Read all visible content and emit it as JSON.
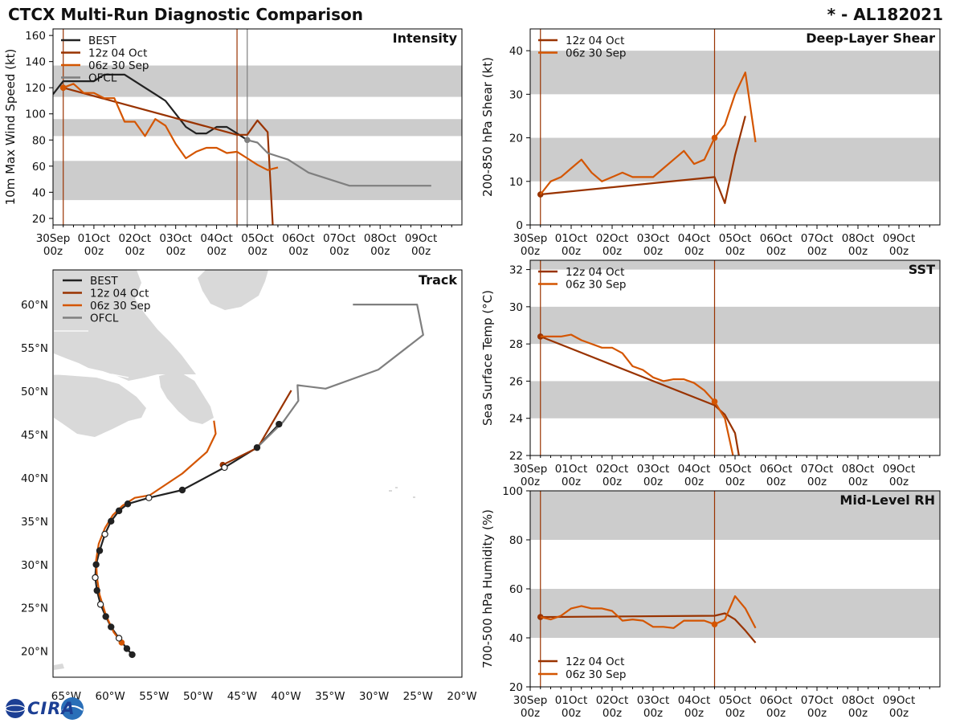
{
  "header": {
    "title": "CTCX Multi-Run Diagnostic Comparison",
    "storm_id": "* - AL182021"
  },
  "logo": {
    "text": "CIRA"
  },
  "colors": {
    "best": "#222222",
    "run12z": "#993300",
    "run06z": "#d45500",
    "ofcl": "#7f7f7f",
    "band": "#cccccc",
    "land": "#d9d9d9"
  },
  "time_axis": {
    "days": [
      "30Sep",
      "01Oct",
      "02Oct",
      "03Oct",
      "04Oct",
      "05Oct",
      "06Oct",
      "07Oct",
      "08Oct",
      "09Oct"
    ],
    "hour": "00z",
    "start": "2021-09-30 00z",
    "units": "hours since 30Sep 00z",
    "xlim": [
      0,
      240
    ]
  },
  "chart_data": [
    {
      "id": "intensity",
      "type": "line",
      "title": "Intensity",
      "ylabel": "10m Max Wind Speed (kt)",
      "ylim": [
        15,
        165
      ],
      "yticks": [
        20,
        40,
        60,
        80,
        100,
        120,
        140,
        160
      ],
      "bands": [
        [
          34,
          64
        ],
        [
          83,
          96
        ],
        [
          113,
          137
        ]
      ],
      "init_lines": [
        {
          "x": 6,
          "series": "06z 30 Sep"
        },
        {
          "x": 108,
          "series": "12z 04 Oct"
        },
        {
          "x": 114,
          "series": "OFCL"
        }
      ],
      "legend": [
        "BEST",
        "12z 04 Oct",
        "06z 30 Sep",
        "OFCL"
      ],
      "series": [
        {
          "name": "BEST",
          "x": [
            0,
            6,
            12,
            18,
            24,
            30,
            36,
            42,
            48,
            54,
            60,
            66,
            72,
            78,
            84,
            90,
            96,
            102,
            108,
            114
          ],
          "y": [
            115,
            125,
            125,
            125,
            125,
            130,
            130,
            130,
            125,
            120,
            115,
            110,
            100,
            90,
            85,
            85,
            90,
            90,
            85,
            80
          ]
        },
        {
          "name": "12z 04 Oct",
          "x": [
            6,
            108,
            114,
            120,
            126,
            129
          ],
          "y": [
            120,
            84,
            84,
            95,
            86,
            14
          ],
          "marker_x": 6
        },
        {
          "name": "06z 30 Sep",
          "x": [
            6,
            12,
            18,
            24,
            30,
            36,
            42,
            48,
            54,
            60,
            66,
            72,
            78,
            84,
            90,
            96,
            102,
            108,
            114,
            120,
            126,
            132
          ],
          "y": [
            120,
            123,
            116,
            116,
            112,
            112,
            94,
            94,
            83,
            96,
            91,
            77,
            66,
            71,
            74,
            74,
            70,
            71,
            66,
            61,
            57,
            59
          ],
          "marker_x": 6
        },
        {
          "name": "OFCL",
          "x": [
            114,
            120,
            126,
            138,
            150,
            174,
            198,
            222
          ],
          "y": [
            80,
            78,
            70,
            65,
            55,
            45,
            45,
            45
          ],
          "marker_x": 114
        }
      ]
    },
    {
      "id": "shear",
      "type": "line",
      "title": "Deep-Layer Shear",
      "ylabel": "200-850 hPa Shear (kt)",
      "ylim": [
        0,
        45
      ],
      "yticks": [
        0,
        10,
        20,
        30,
        40
      ],
      "bands": [
        [
          10,
          20
        ],
        [
          30,
          40
        ]
      ],
      "init_lines": [
        {
          "x": 6
        },
        {
          "x": 108
        }
      ],
      "legend": [
        "12z 04 Oct",
        "06z 30 Sep"
      ],
      "series": [
        {
          "name": "12z 04 Oct",
          "x": [
            6,
            108,
            114,
            120,
            126
          ],
          "y": [
            7,
            11,
            5,
            16,
            25
          ],
          "marker_x": 6
        },
        {
          "name": "06z 30 Sep",
          "x": [
            6,
            12,
            18,
            24,
            30,
            36,
            42,
            48,
            54,
            60,
            66,
            72,
            78,
            84,
            90,
            96,
            102,
            108,
            114,
            120,
            126,
            132
          ],
          "y": [
            7,
            10,
            11,
            13,
            15,
            12,
            10,
            11,
            12,
            11,
            11,
            11,
            13,
            15,
            17,
            14,
            15,
            20,
            23,
            30,
            35,
            19
          ],
          "marker_x": 108
        }
      ]
    },
    {
      "id": "sst",
      "type": "line",
      "title": "SST",
      "ylabel": "Sea Surface Temp (°C)",
      "ylim": [
        22,
        32.5
      ],
      "yticks": [
        22,
        24,
        26,
        28,
        30,
        32
      ],
      "bands": [
        [
          24,
          26
        ],
        [
          28,
          30
        ],
        [
          32,
          33
        ]
      ],
      "init_lines": [
        {
          "x": 6
        },
        {
          "x": 108
        }
      ],
      "legend": [
        "12z 04 Oct",
        "06z 30 Sep"
      ],
      "series": [
        {
          "name": "12z 04 Oct",
          "x": [
            6,
            108,
            114,
            120,
            126
          ],
          "y": [
            28.4,
            24.7,
            24.2,
            23.2,
            20.0
          ],
          "marker_x": 6
        },
        {
          "name": "06z 30 Sep",
          "x": [
            6,
            12,
            18,
            24,
            30,
            36,
            42,
            48,
            54,
            60,
            66,
            72,
            78,
            84,
            90,
            96,
            102,
            108,
            114,
            120
          ],
          "y": [
            28.4,
            28.4,
            28.4,
            28.5,
            28.2,
            28.0,
            27.8,
            27.8,
            27.5,
            26.8,
            26.6,
            26.2,
            26.0,
            26.1,
            26.1,
            25.9,
            25.5,
            24.9,
            24.0,
            21.5
          ],
          "marker_x": 108
        }
      ]
    },
    {
      "id": "rh",
      "type": "line",
      "title": "Mid-Level RH",
      "ylabel": "700-500 hPa Humidity (%)",
      "ylim": [
        20,
        100
      ],
      "yticks": [
        20,
        40,
        60,
        80,
        100
      ],
      "bands": [
        [
          40,
          60
        ],
        [
          80,
          100
        ]
      ],
      "init_lines": [
        {
          "x": 6
        },
        {
          "x": 108
        }
      ],
      "legend": [
        "12z 04 Oct",
        "06z 30 Sep"
      ],
      "series": [
        {
          "name": "12z 04 Oct",
          "x": [
            6,
            108,
            114,
            120,
            126,
            132
          ],
          "y": [
            48.5,
            49,
            50,
            47.5,
            43,
            38
          ],
          "marker_x": 6
        },
        {
          "name": "06z 30 Sep",
          "x": [
            6,
            12,
            18,
            24,
            30,
            36,
            42,
            48,
            54,
            60,
            66,
            72,
            78,
            84,
            90,
            96,
            102,
            108,
            114,
            120,
            126,
            132
          ],
          "y": [
            48.5,
            47.5,
            49,
            52,
            53,
            52,
            52,
            51,
            47,
            47.5,
            47,
            44.5,
            44.5,
            44,
            47,
            47,
            47,
            45.5,
            47.5,
            57,
            52,
            44
          ],
          "marker_x": 108
        }
      ]
    },
    {
      "id": "track",
      "type": "scatter",
      "title": "Track",
      "xlim_deg": [
        -66.5,
        -20
      ],
      "ylim_deg": [
        17,
        64
      ],
      "xticks": [
        -65,
        -60,
        -55,
        -50,
        -45,
        -40,
        -35,
        -30,
        -25,
        -20
      ],
      "xtick_labels": [
        "65°W",
        "60°W",
        "55°W",
        "50°W",
        "45°W",
        "40°W",
        "35°W",
        "30°W",
        "25°W",
        "20°W"
      ],
      "yticks": [
        20,
        25,
        30,
        35,
        40,
        45,
        50,
        55,
        60
      ],
      "ytick_labels": [
        "20°N",
        "25°N",
        "30°N",
        "35°N",
        "40°N",
        "45°N",
        "50°N",
        "55°N",
        "60°N"
      ],
      "legend": [
        "BEST",
        "12z 04 Oct",
        "06z 30 Sep",
        "OFCL"
      ],
      "series": [
        {
          "name": "BEST",
          "lon": [
            -57.5,
            -58.1,
            -59.0,
            -59.9,
            -60.5,
            -61.1,
            -61.5,
            -61.7,
            -61.6,
            -61.2,
            -60.6,
            -59.9,
            -59.0,
            -58.0,
            -55.6,
            -51.8,
            -47.0,
            -43.3,
            -40.8
          ],
          "lat": [
            19.6,
            20.3,
            21.5,
            22.8,
            24.0,
            25.4,
            27.0,
            28.5,
            30.0,
            31.6,
            33.5,
            35.0,
            36.2,
            37.0,
            37.7,
            38.6,
            41.2,
            43.5,
            46.2
          ],
          "open": [
            false,
            false,
            true,
            false,
            false,
            true,
            false,
            true,
            false,
            false,
            true,
            false,
            false,
            false,
            true,
            false,
            true,
            false,
            false
          ]
        },
        {
          "name": "12z 04 Oct",
          "lon": [
            -47.2,
            -43.2,
            -39.4
          ],
          "lat": [
            41.5,
            43.5,
            50.1
          ]
        },
        {
          "name": "06z 30 Sep",
          "lon": [
            -58.7,
            -59.6,
            -60.5,
            -61.2,
            -61.5,
            -61.6,
            -61.3,
            -60.6,
            -59.7,
            -58.6,
            -57.2,
            -55.5,
            -51.8,
            -49.0,
            -48.0,
            -48.2
          ],
          "lat": [
            21.0,
            22.2,
            24.2,
            26.5,
            28.5,
            30.5,
            32.4,
            34.2,
            35.7,
            36.8,
            37.7,
            38.0,
            40.5,
            43.0,
            45.1,
            46.6
          ]
        },
        {
          "name": "OFCL",
          "lon": [
            -43.3,
            -40.3,
            -38.6,
            -38.7,
            -35.5,
            -29.5,
            -24.4,
            -25.1,
            -32.4
          ],
          "lat": [
            43.5,
            46.5,
            48.9,
            50.7,
            50.3,
            52.5,
            56.5,
            60.0,
            60.0
          ]
        }
      ]
    }
  ]
}
